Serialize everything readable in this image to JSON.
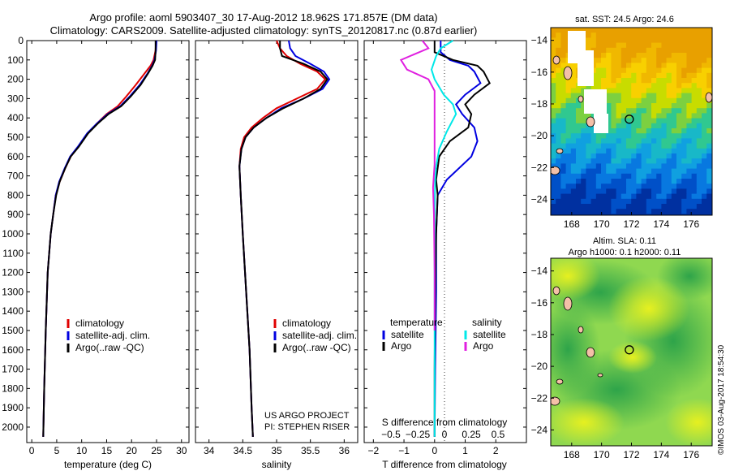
{
  "header": {
    "line1": "Argo profile: aoml 5903407_30 17-Aug-2012 18.962S 171.857E (DM data)",
    "line2": "Climatology: CARS2009. Satellite-adjusted climatology: synTS_20120817.nc (0.87d earlier)"
  },
  "footer_stamp": "©IMOS 03-Aug-2017 18:54:30",
  "colors": {
    "climatology": "#e00000",
    "satellite": "#0000e0",
    "argo": "#000000",
    "cyan": "#00e8e8",
    "magenta": "#e020e0"
  },
  "chart_data": [
    {
      "type": "line",
      "panel": "temperature",
      "xlabel": "temperature (deg C)",
      "ylabel": "",
      "xlim": [
        -1,
        31.5
      ],
      "ylim": [
        2080,
        0
      ],
      "xticks": [
        0,
        5,
        10,
        15,
        20,
        25,
        30
      ],
      "yticks": [
        0,
        100,
        200,
        300,
        400,
        500,
        600,
        700,
        800,
        900,
        1000,
        1100,
        1200,
        1300,
        1400,
        1500,
        1600,
        1700,
        1800,
        1900,
        2000
      ],
      "legend": [
        "climatology",
        "satellite-adj. clim.",
        "Argo(..raw -QC)"
      ],
      "series": [
        {
          "name": "climatology",
          "color": "#e00000",
          "x": [
            24.9,
            24.8,
            24.4,
            23.8,
            22.6,
            20.8,
            18.9,
            17.2,
            15.0,
            13.0,
            11.2,
            9.3,
            7.8,
            6.7,
            5.6,
            4.8,
            4.3,
            3.8,
            3.2,
            2.8,
            2.5,
            2.3
          ],
          "y": [
            0,
            50,
            100,
            130,
            170,
            230,
            290,
            340,
            380,
            430,
            480,
            550,
            600,
            660,
            730,
            800,
            900,
            1000,
            1200,
            1500,
            1800,
            2050
          ]
        },
        {
          "name": "satellite-adj. clim.",
          "color": "#0000e0",
          "x": [
            25.0,
            24.9,
            24.6,
            24.1,
            23.2,
            21.6,
            19.6,
            17.7,
            15.2,
            13.0,
            11.1,
            9.2,
            7.7,
            6.6,
            5.5,
            4.8,
            4.3,
            3.8,
            3.2,
            2.8,
            2.5,
            2.3
          ],
          "y": [
            0,
            50,
            100,
            130,
            170,
            230,
            290,
            340,
            380,
            430,
            480,
            550,
            600,
            660,
            730,
            800,
            900,
            1000,
            1200,
            1500,
            1800,
            2050
          ]
        },
        {
          "name": "Argo(..raw -QC)",
          "color": "#000000",
          "x": [
            24.8,
            24.8,
            24.7,
            24.2,
            23.3,
            21.8,
            19.8,
            17.9,
            15.4,
            13.2,
            11.3,
            9.4,
            7.8,
            6.7,
            5.6,
            4.9,
            4.3,
            3.8,
            3.2,
            2.8,
            2.5,
            2.3
          ],
          "y": [
            0,
            50,
            100,
            130,
            170,
            230,
            290,
            340,
            380,
            430,
            480,
            550,
            600,
            660,
            730,
            800,
            900,
            1000,
            1200,
            1500,
            1800,
            2050
          ]
        }
      ]
    },
    {
      "type": "line",
      "panel": "salinity",
      "xlabel": "salinity",
      "ylabel": "",
      "xlim": [
        33.8,
        36.2
      ],
      "ylim": [
        2080,
        0
      ],
      "xticks": [
        34,
        34.5,
        35,
        35.5,
        36
      ],
      "legend": [
        "climatology",
        "satellite-adj. clim.",
        "Argo(..raw -QC)"
      ],
      "annotation": [
        "US ARGO PROJECT",
        "PI: STEPHEN RISER"
      ],
      "series": [
        {
          "name": "climatology",
          "color": "#e00000",
          "x": [
            35.0,
            35.05,
            35.15,
            35.35,
            35.6,
            35.72,
            35.6,
            35.3,
            35.0,
            34.8,
            34.63,
            34.52,
            34.47,
            34.45,
            34.47,
            34.5,
            34.55,
            34.6,
            34.63,
            34.65
          ],
          "y": [
            0,
            40,
            80,
            120,
            160,
            200,
            250,
            300,
            350,
            400,
            450,
            500,
            560,
            650,
            800,
            1000,
            1300,
            1600,
            1900,
            2050
          ]
        },
        {
          "name": "satellite-adj. clim.",
          "color": "#0000e0",
          "x": [
            35.18,
            35.2,
            35.28,
            35.5,
            35.7,
            35.78,
            35.68,
            35.4,
            35.07,
            34.85,
            34.66,
            34.54,
            34.48,
            34.45,
            34.47,
            34.5,
            34.55,
            34.6,
            34.63,
            34.65
          ],
          "y": [
            0,
            40,
            80,
            120,
            160,
            200,
            250,
            300,
            350,
            400,
            450,
            500,
            560,
            650,
            800,
            1000,
            1300,
            1600,
            1900,
            2050
          ]
        },
        {
          "name": "Argo(..raw -QC)",
          "color": "#000000",
          "x": [
            35.05,
            35.05,
            35.08,
            35.4,
            35.65,
            35.75,
            35.65,
            35.4,
            35.1,
            34.85,
            34.66,
            34.54,
            34.48,
            34.45,
            34.47,
            34.5,
            34.55,
            34.6,
            34.63,
            34.65
          ],
          "y": [
            0,
            40,
            80,
            120,
            160,
            200,
            250,
            300,
            350,
            400,
            450,
            500,
            560,
            650,
            800,
            1000,
            1300,
            1600,
            1900,
            2050
          ]
        }
      ]
    },
    {
      "type": "line",
      "panel": "difference",
      "xlabel": "T difference from climatology",
      "xlabel_top": "S difference from climatology",
      "ylabel": "",
      "xlim": [
        -2.3,
        3.0
      ],
      "ylim": [
        2080,
        0
      ],
      "xticks": [
        -2,
        -1,
        0,
        1,
        2
      ],
      "s_xticks": [
        -0.5,
        -0.25,
        0,
        0.25,
        0.5
      ],
      "legend_titles": [
        "temperature",
        "salinity"
      ],
      "legend": [
        "satellite",
        "Argo",
        "satellite",
        "Argo"
      ],
      "series": [
        {
          "name": "temperature satellite",
          "color": "#0000e0",
          "x": [
            0.2,
            0.2,
            0.5,
            1.1,
            1.3,
            1.5,
            1.0,
            0.7,
            0.9,
            1.3,
            1.4,
            1.2,
            0.4,
            0.1,
            0.05,
            0.05,
            0.02,
            0.0
          ],
          "y": [
            0,
            60,
            100,
            130,
            160,
            220,
            280,
            330,
            380,
            450,
            520,
            600,
            720,
            800,
            1000,
            1300,
            1700,
            2050
          ]
        },
        {
          "name": "temperature Argo",
          "color": "#000000",
          "x": [
            0.0,
            0.0,
            0.6,
            1.4,
            1.6,
            1.8,
            1.3,
            1.0,
            1.2,
            1.1,
            0.5,
            0.15,
            0.05,
            0.1,
            0.05,
            0.02,
            0.0,
            0.0
          ],
          "y": [
            0,
            60,
            100,
            130,
            160,
            220,
            280,
            330,
            380,
            450,
            520,
            600,
            720,
            800,
            1000,
            1300,
            1700,
            2050
          ]
        },
        {
          "name": "salinity satellite",
          "color": "#00e8e8",
          "x": [
            0.6,
            0.2,
            0.05,
            -0.1,
            0.0,
            0.3,
            0.6,
            0.7,
            0.4,
            0.15,
            0.05,
            0.02,
            0.0,
            0.0,
            0.0,
            0.0
          ],
          "y": [
            0,
            40,
            80,
            150,
            200,
            280,
            330,
            380,
            470,
            560,
            650,
            720,
            900,
            1100,
            1500,
            2050
          ]
        },
        {
          "name": "salinity Argo",
          "color": "#e020e0",
          "x": [
            -0.4,
            -0.2,
            -1.1,
            -0.9,
            -0.2,
            0.0,
            0.0,
            0.0,
            0.0,
            0.0,
            -0.05,
            -0.02,
            0.0,
            0.0
          ],
          "y": [
            0,
            40,
            100,
            150,
            200,
            260,
            330,
            420,
            520,
            640,
            760,
            900,
            1200,
            1500
          ]
        }
      ]
    },
    {
      "type": "heatmap",
      "panel": "sst-map",
      "title": "sat. SST: 24.5 Argo: 24.6",
      "xlim": [
        166.6,
        177.4
      ],
      "ylim": [
        -25,
        -13.2
      ],
      "xticks": [
        168,
        170,
        172,
        174,
        176
      ],
      "yticks": [
        -14,
        -16,
        -18,
        -20,
        -22,
        -24
      ],
      "marker": {
        "lon": 171.857,
        "lat": -18.962
      }
    },
    {
      "type": "heatmap",
      "panel": "sla-map",
      "title": "Altim. SLA: 0.11",
      "subtitle": "Argo h1000: 0.1 h2000: 0.11",
      "xlim": [
        166.6,
        177.4
      ],
      "ylim": [
        -25,
        -13.2
      ],
      "xticks": [
        168,
        170,
        172,
        174,
        176
      ],
      "yticks": [
        -14,
        -16,
        -18,
        -20,
        -22,
        -24
      ],
      "marker": {
        "lon": 171.857,
        "lat": -18.962
      }
    }
  ]
}
